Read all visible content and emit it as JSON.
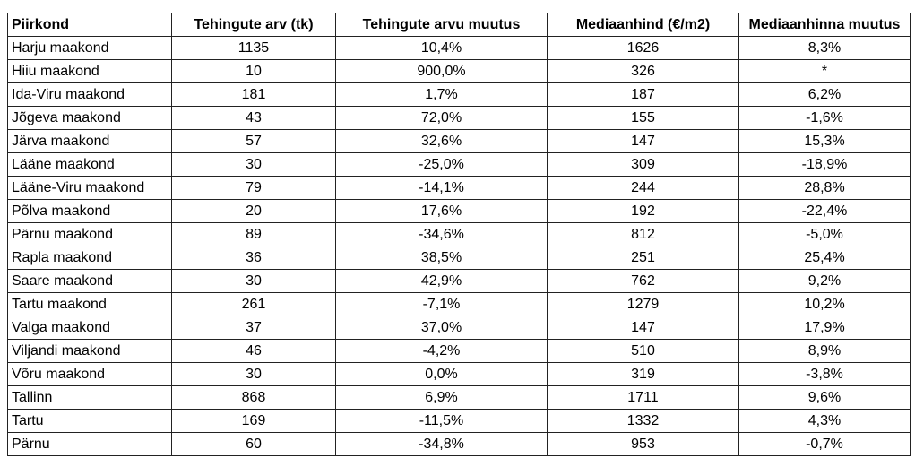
{
  "table": {
    "headers": [
      "Piirkond",
      "Tehingute arv (tk)",
      "Tehingute arvu muutus",
      "Mediaanhind (€/m2)",
      "Mediaanhinna muutus"
    ],
    "rows": [
      [
        "Harju maakond",
        "1135",
        "10,4%",
        "1626",
        "8,3%"
      ],
      [
        "Hiiu maakond",
        "10",
        "900,0%",
        "326",
        "*"
      ],
      [
        "Ida-Viru maakond",
        "181",
        "1,7%",
        "187",
        "6,2%"
      ],
      [
        "Jõgeva maakond",
        "43",
        "72,0%",
        "155",
        "-1,6%"
      ],
      [
        "Järva maakond",
        "57",
        "32,6%",
        "147",
        "15,3%"
      ],
      [
        "Lääne maakond",
        "30",
        "-25,0%",
        "309",
        "-18,9%"
      ],
      [
        "Lääne-Viru maakond",
        "79",
        "-14,1%",
        "244",
        "28,8%"
      ],
      [
        "Põlva maakond",
        "20",
        "17,6%",
        "192",
        "-22,4%"
      ],
      [
        "Pärnu maakond",
        "89",
        "-34,6%",
        "812",
        "-5,0%"
      ],
      [
        "Rapla maakond",
        "36",
        "38,5%",
        "251",
        "25,4%"
      ],
      [
        "Saare maakond",
        "30",
        "42,9%",
        "762",
        "9,2%"
      ],
      [
        "Tartu maakond",
        "261",
        "-7,1%",
        "1279",
        "10,2%"
      ],
      [
        "Valga maakond",
        "37",
        "37,0%",
        "147",
        "17,9%"
      ],
      [
        "Viljandi maakond",
        "46",
        "-4,2%",
        "510",
        "8,9%"
      ],
      [
        "Võru maakond",
        "30",
        "0,0%",
        "319",
        "-3,8%"
      ],
      [
        "Tallinn",
        "868",
        "6,9%",
        "1711",
        "9,6%"
      ],
      [
        "Tartu",
        "169",
        "-11,5%",
        "1332",
        "4,3%"
      ],
      [
        "Pärnu",
        "60",
        "-34,8%",
        "953",
        "-0,7%"
      ]
    ]
  }
}
